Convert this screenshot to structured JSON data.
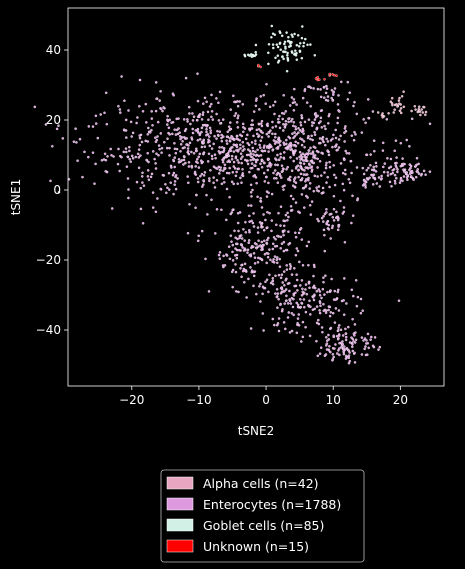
{
  "chart_data": {
    "type": "scatter",
    "title": "",
    "xlabel": "tSNE2",
    "ylabel": "tSNE1",
    "xlim": [
      -29.5,
      26.5
    ],
    "ylim": [
      -56,
      52
    ],
    "xticks": [
      -20,
      -10,
      0,
      10,
      20
    ],
    "yticks": [
      -40,
      -20,
      0,
      20,
      40
    ],
    "xtick_labels": [
      "−20",
      "−10",
      "0",
      "10",
      "20"
    ],
    "ytick_labels": [
      "−40",
      "−20",
      "0",
      "20",
      "40"
    ],
    "grid": false,
    "background": "#000000",
    "legend_position": "bottom-center",
    "legend_entries": [
      "Alpha cells (n=42)",
      "Enterocytes (n=1788)",
      "Goblet cells (n=85)",
      "Unknown (n=15)"
    ],
    "series": [
      {
        "name": "Alpha cells (n=42)",
        "color": "#e8a6c0",
        "count": 42,
        "regions": [
          {
            "cx": 19.5,
            "cy": 24.0,
            "rx": 1.8,
            "ry": 2.5,
            "n": 22
          },
          {
            "cx": 23.0,
            "cy": 22.5,
            "rx": 1.4,
            "ry": 1.6,
            "n": 14
          },
          {
            "cx": 17.5,
            "cy": 21.5,
            "rx": 0.8,
            "ry": 0.8,
            "n": 6
          }
        ]
      },
      {
        "name": "Enterocytes (n=1788)",
        "color": "#dd99dd",
        "count": 1788,
        "regions": [
          {
            "cx": -6.0,
            "cy": 12.0,
            "rx": 19.0,
            "ry": 13.0,
            "n": 820
          },
          {
            "cx": 5.0,
            "cy": 10.0,
            "rx": 8.0,
            "ry": 13.0,
            "n": 250
          },
          {
            "cx": -1.0,
            "cy": -17.0,
            "rx": 6.5,
            "ry": 11.0,
            "n": 240
          },
          {
            "cx": 6.0,
            "cy": -32.0,
            "rx": 7.0,
            "ry": 8.0,
            "n": 190
          },
          {
            "cx": 12.0,
            "cy": -44.0,
            "rx": 4.0,
            "ry": 5.0,
            "n": 110
          },
          {
            "cx": 10.0,
            "cy": -9.0,
            "rx": 2.0,
            "ry": 3.0,
            "n": 40
          },
          {
            "cx": 20.5,
            "cy": 5.0,
            "rx": 4.0,
            "ry": 3.0,
            "n": 80
          },
          {
            "cx": 15.5,
            "cy": 4.0,
            "rx": 1.5,
            "ry": 3.5,
            "n": 30
          },
          {
            "cx": 9.0,
            "cy": 28.0,
            "rx": 3.0,
            "ry": 3.0,
            "n": 28
          }
        ]
      },
      {
        "name": "Goblet cells (n=85)",
        "color": "#d2f0e6",
        "count": 85,
        "regions": [
          {
            "cx": 3.0,
            "cy": 41.0,
            "rx": 3.5,
            "ry": 4.5,
            "n": 75
          },
          {
            "cx": -2.0,
            "cy": 38.5,
            "rx": 0.8,
            "ry": 0.4,
            "n": 10
          }
        ]
      },
      {
        "name": "Unknown (n=15)",
        "color": "#ff0000",
        "count": 15,
        "regions": [
          {
            "cx": 10.0,
            "cy": 33.0,
            "rx": 0.7,
            "ry": 0.3,
            "n": 6
          },
          {
            "cx": 7.5,
            "cy": 32.0,
            "rx": 0.8,
            "ry": 0.6,
            "n": 6
          },
          {
            "cx": -1.0,
            "cy": 35.5,
            "rx": 0.3,
            "ry": 0.3,
            "n": 3
          }
        ]
      }
    ]
  }
}
